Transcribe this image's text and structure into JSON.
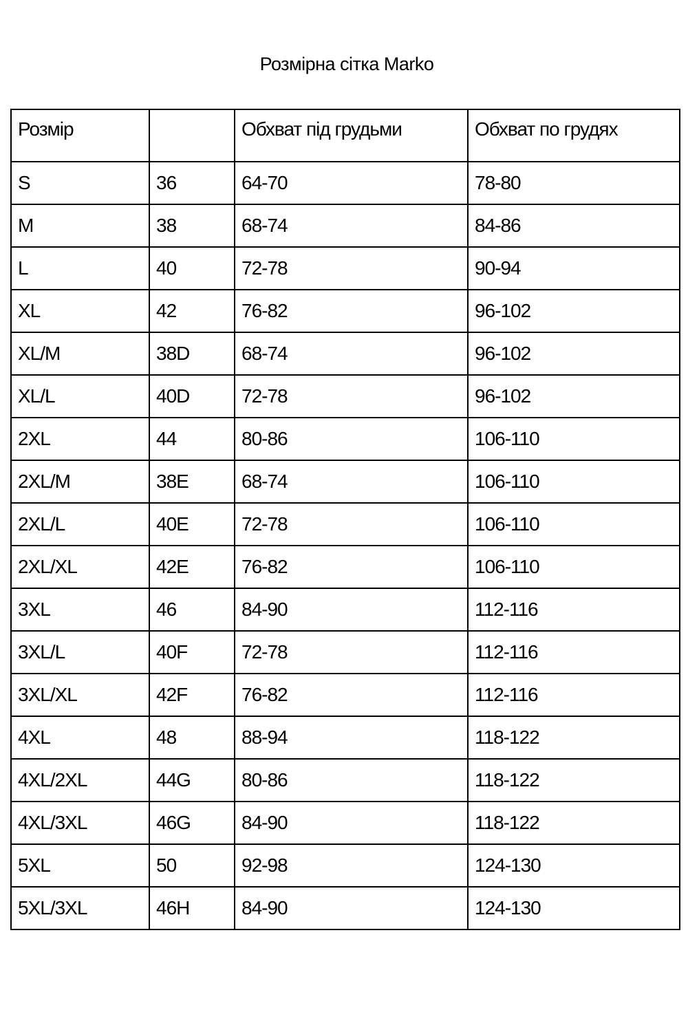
{
  "title": "Розмірна сітка Marko",
  "table": {
    "headers": [
      "Розмір",
      "",
      "Обхват під грудьми",
      "Обхват по грудях"
    ],
    "rows": [
      [
        "S",
        "36",
        "64-70",
        "78-80"
      ],
      [
        "M",
        "38",
        "68-74",
        "84-86"
      ],
      [
        "L",
        "40",
        "72-78",
        "90-94"
      ],
      [
        "XL",
        "42",
        "76-82",
        "96-102"
      ],
      [
        "XL/M",
        "38D",
        "68-74",
        "96-102"
      ],
      [
        "XL/L",
        "40D",
        "72-78",
        "96-102"
      ],
      [
        "2XL",
        "44",
        "80-86",
        "106-110"
      ],
      [
        "2XL/M",
        "38E",
        "68-74",
        "106-110"
      ],
      [
        "2XL/L",
        "40E",
        "72-78",
        "106-110"
      ],
      [
        "2XL/XL",
        "42E",
        "76-82",
        "106-110"
      ],
      [
        "3XL",
        "46",
        "84-90",
        "112-116"
      ],
      [
        "3XL/L",
        "40F",
        "72-78",
        "112-116"
      ],
      [
        "3XL/XL",
        "42F",
        "76-82",
        "112-116"
      ],
      [
        "4XL",
        "48",
        "88-94",
        "118-122"
      ],
      [
        "4XL/2XL",
        "44G",
        "80-86",
        "118-122"
      ],
      [
        "4XL/3XL",
        "46G",
        "84-90",
        "118-122"
      ],
      [
        "5XL",
        "50",
        "92-98",
        "124-130"
      ],
      [
        "5XL/3XL",
        "46H",
        "84-90",
        "124-130"
      ]
    ]
  }
}
